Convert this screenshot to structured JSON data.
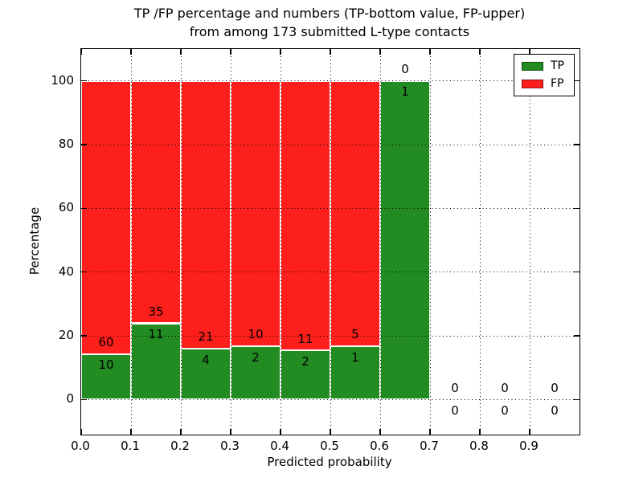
{
  "chart_data": {
    "type": "bar",
    "stacked": true,
    "title_line1": "TP /FP percentage and numbers (TP-bottom value, FP-upper)",
    "title_line2": "from among 173 submitted L-type contacts",
    "xlabel": "Predicted probability",
    "ylabel": "Percentage",
    "total_contacts": 173,
    "xlim": [
      0.0,
      1.0
    ],
    "ylim": [
      -11,
      110
    ],
    "bin_width": 0.1,
    "x_tick_labels": [
      "0.0",
      "0.1",
      "0.2",
      "0.3",
      "0.4",
      "0.5",
      "0.6",
      "0.7",
      "0.8",
      "0.9"
    ],
    "x_tick_values": [
      0.0,
      0.1,
      0.2,
      0.3,
      0.4,
      0.5,
      0.6,
      0.7,
      0.8,
      0.9
    ],
    "y_tick_labels": [
      "0",
      "20",
      "40",
      "60",
      "80",
      "100"
    ],
    "y_tick_values": [
      0,
      20,
      40,
      60,
      80,
      100
    ],
    "grid": "dotted-black-both-axes",
    "legend_position": "upper-right",
    "legend": [
      {
        "label": "TP",
        "color": "#228b22"
      },
      {
        "label": "FP",
        "color": "#fd1f1c"
      }
    ],
    "bins": [
      {
        "x_start": 0.0,
        "x_end": 0.1,
        "tp": 10,
        "fp": 60,
        "tp_pct": 14.3
      },
      {
        "x_start": 0.1,
        "x_end": 0.2,
        "tp": 11,
        "fp": 35,
        "tp_pct": 23.9
      },
      {
        "x_start": 0.2,
        "x_end": 0.3,
        "tp": 4,
        "fp": 21,
        "tp_pct": 16.0
      },
      {
        "x_start": 0.3,
        "x_end": 0.4,
        "tp": 2,
        "fp": 10,
        "tp_pct": 16.7
      },
      {
        "x_start": 0.4,
        "x_end": 0.5,
        "tp": 2,
        "fp": 11,
        "tp_pct": 15.4
      },
      {
        "x_start": 0.5,
        "x_end": 0.6,
        "tp": 1,
        "fp": 5,
        "tp_pct": 16.7
      },
      {
        "x_start": 0.6,
        "x_end": 0.7,
        "tp": 1,
        "fp": 0,
        "tp_pct": 100.0
      },
      {
        "x_start": 0.7,
        "x_end": 0.8,
        "tp": 0,
        "fp": 0,
        "tp_pct": 0
      },
      {
        "x_start": 0.8,
        "x_end": 0.9,
        "tp": 0,
        "fp": 0,
        "tp_pct": 0
      },
      {
        "x_start": 0.9,
        "x_end": 1.0,
        "tp": 0,
        "fp": 0,
        "tp_pct": 0
      }
    ],
    "colors": {
      "tp_fill": "#228b22",
      "fp_fill": "#fd1f1c",
      "bar_edge": "#ffffff",
      "grid": "#000000",
      "background": "#ffffff"
    }
  }
}
